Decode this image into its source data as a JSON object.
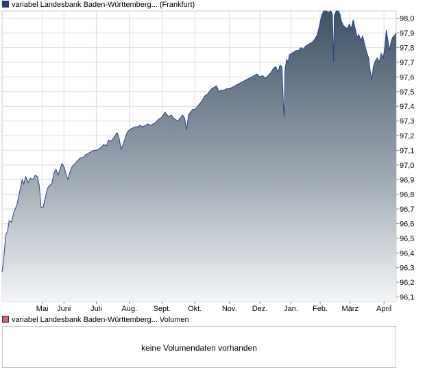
{
  "legend": {
    "price_label": "variabel Landesbank Baden-Württemberg... (Frankfurt)",
    "price_color": "#1f3f8f",
    "volume_label": "variabel Landesbank Baden-Württemberg... Volumen",
    "volume_color": "#d9606a"
  },
  "volume": {
    "message": "keine Volumendaten vorhanden"
  },
  "chart_data": {
    "type": "area",
    "grid": true,
    "y_axis_side": "right",
    "ylim": [
      96.07,
      98.05
    ],
    "yticks": [
      "96,1",
      "96,2",
      "96,3",
      "96,4",
      "96,5",
      "96,6",
      "96,7",
      "96,8",
      "96,9",
      "97,0",
      "97,1",
      "97,2",
      "97,3",
      "97,4",
      "97,5",
      "97,6",
      "97,7",
      "97,8",
      "97,9",
      "98,0"
    ],
    "ytick_values": [
      96.1,
      96.2,
      96.3,
      96.4,
      96.5,
      96.6,
      96.7,
      96.8,
      96.9,
      97.0,
      97.1,
      97.2,
      97.3,
      97.4,
      97.5,
      97.6,
      97.7,
      97.8,
      97.9,
      98.0
    ],
    "xlim": [
      0,
      1
    ],
    "xticks": [
      {
        "label": "Mai",
        "x": 0.102
      },
      {
        "label": "Juni",
        "x": 0.157
      },
      {
        "label": "Juli",
        "x": 0.239
      },
      {
        "label": "Aug.",
        "x": 0.323
      },
      {
        "label": "Sept.",
        "x": 0.406
      },
      {
        "label": "Okt.",
        "x": 0.489
      },
      {
        "label": "Nov.",
        "x": 0.577
      },
      {
        "label": "Dez.",
        "x": 0.654
      },
      {
        "label": "Jan.",
        "x": 0.733
      },
      {
        "label": "Feb.",
        "x": 0.807
      },
      {
        "label": "März",
        "x": 0.883
      },
      {
        "label": "April",
        "x": 0.969
      }
    ],
    "series": [
      {
        "values": [
          [
            0.0,
            96.27
          ],
          [
            0.004,
            96.35
          ],
          [
            0.009,
            96.52
          ],
          [
            0.014,
            96.55
          ],
          [
            0.018,
            96.62
          ],
          [
            0.024,
            96.61
          ],
          [
            0.03,
            96.68
          ],
          [
            0.038,
            96.73
          ],
          [
            0.044,
            96.81
          ],
          [
            0.048,
            96.86
          ],
          [
            0.051,
            96.9
          ],
          [
            0.055,
            96.87
          ],
          [
            0.06,
            96.92
          ],
          [
            0.066,
            96.88
          ],
          [
            0.072,
            96.91
          ],
          [
            0.078,
            96.9
          ],
          [
            0.084,
            96.93
          ],
          [
            0.09,
            96.92
          ],
          [
            0.095,
            96.85
          ],
          [
            0.099,
            96.71
          ],
          [
            0.104,
            96.71
          ],
          [
            0.11,
            96.78
          ],
          [
            0.115,
            96.84
          ],
          [
            0.121,
            96.86
          ],
          [
            0.126,
            96.87
          ],
          [
            0.132,
            96.95
          ],
          [
            0.137,
            96.97
          ],
          [
            0.142,
            96.93
          ],
          [
            0.147,
            96.97
          ],
          [
            0.152,
            97.01
          ],
          [
            0.157,
            96.99
          ],
          [
            0.162,
            96.94
          ],
          [
            0.167,
            96.9
          ],
          [
            0.172,
            96.95
          ],
          [
            0.178,
            96.99
          ],
          [
            0.185,
            97.01
          ],
          [
            0.192,
            97.03
          ],
          [
            0.199,
            97.05
          ],
          [
            0.206,
            97.05
          ],
          [
            0.212,
            97.07
          ],
          [
            0.219,
            97.08
          ],
          [
            0.226,
            97.09
          ],
          [
            0.233,
            97.1
          ],
          [
            0.24,
            97.1
          ],
          [
            0.246,
            97.11
          ],
          [
            0.252,
            97.12
          ],
          [
            0.258,
            97.14
          ],
          [
            0.265,
            97.13
          ],
          [
            0.27,
            97.17
          ],
          [
            0.276,
            97.16
          ],
          [
            0.282,
            97.18
          ],
          [
            0.287,
            97.2
          ],
          [
            0.292,
            97.22
          ],
          [
            0.297,
            97.18
          ],
          [
            0.302,
            97.11
          ],
          [
            0.307,
            97.14
          ],
          [
            0.312,
            97.18
          ],
          [
            0.317,
            97.22
          ],
          [
            0.323,
            97.24
          ],
          [
            0.33,
            97.25
          ],
          [
            0.337,
            97.26
          ],
          [
            0.344,
            97.26
          ],
          [
            0.35,
            97.27
          ],
          [
            0.357,
            97.26
          ],
          [
            0.363,
            97.27
          ],
          [
            0.37,
            97.28
          ],
          [
            0.377,
            97.27
          ],
          [
            0.383,
            97.28
          ],
          [
            0.39,
            97.29
          ],
          [
            0.396,
            97.31
          ],
          [
            0.403,
            97.32
          ],
          [
            0.409,
            97.34
          ],
          [
            0.414,
            97.36
          ],
          [
            0.419,
            97.34
          ],
          [
            0.424,
            97.33
          ],
          [
            0.429,
            97.34
          ],
          [
            0.435,
            97.32
          ],
          [
            0.44,
            97.31
          ],
          [
            0.446,
            97.3
          ],
          [
            0.452,
            97.32
          ],
          [
            0.458,
            97.34
          ],
          [
            0.463,
            97.32
          ],
          [
            0.468,
            97.24
          ],
          [
            0.473,
            97.34
          ],
          [
            0.478,
            97.36
          ],
          [
            0.484,
            97.38
          ],
          [
            0.49,
            97.38
          ],
          [
            0.496,
            97.4
          ],
          [
            0.502,
            97.42
          ],
          [
            0.508,
            97.44
          ],
          [
            0.514,
            97.47
          ],
          [
            0.52,
            97.48
          ],
          [
            0.526,
            97.5
          ],
          [
            0.532,
            97.52
          ],
          [
            0.538,
            97.53
          ],
          [
            0.544,
            97.54
          ],
          [
            0.55,
            97.5
          ],
          [
            0.556,
            97.51
          ],
          [
            0.563,
            97.51
          ],
          [
            0.57,
            97.52
          ],
          [
            0.577,
            97.52
          ],
          [
            0.584,
            97.53
          ],
          [
            0.591,
            97.54
          ],
          [
            0.598,
            97.55
          ],
          [
            0.605,
            97.56
          ],
          [
            0.612,
            97.57
          ],
          [
            0.619,
            97.58
          ],
          [
            0.626,
            97.59
          ],
          [
            0.633,
            97.6
          ],
          [
            0.64,
            97.61
          ],
          [
            0.647,
            97.62
          ],
          [
            0.654,
            97.6
          ],
          [
            0.661,
            97.61
          ],
          [
            0.668,
            97.59
          ],
          [
            0.675,
            97.61
          ],
          [
            0.682,
            97.63
          ],
          [
            0.689,
            97.66
          ],
          [
            0.695,
            97.67
          ],
          [
            0.7,
            97.63
          ],
          [
            0.705,
            97.68
          ],
          [
            0.71,
            97.67
          ],
          [
            0.714,
            97.4
          ],
          [
            0.716,
            97.33
          ],
          [
            0.718,
            97.65
          ],
          [
            0.722,
            97.72
          ],
          [
            0.726,
            97.7
          ],
          [
            0.729,
            97.75
          ],
          [
            0.734,
            97.76
          ],
          [
            0.74,
            97.77
          ],
          [
            0.746,
            97.78
          ],
          [
            0.752,
            97.78
          ],
          [
            0.758,
            97.8
          ],
          [
            0.764,
            97.79
          ],
          [
            0.77,
            97.81
          ],
          [
            0.776,
            97.82
          ],
          [
            0.782,
            97.83
          ],
          [
            0.788,
            97.84
          ],
          [
            0.794,
            97.86
          ],
          [
            0.8,
            97.89
          ],
          [
            0.806,
            97.96
          ],
          [
            0.811,
            98.02
          ],
          [
            0.816,
            98.05
          ],
          [
            0.822,
            98.05
          ],
          [
            0.828,
            98.04
          ],
          [
            0.834,
            98.05
          ],
          [
            0.838,
            98.03
          ],
          [
            0.841,
            97.7
          ],
          [
            0.843,
            98.02
          ],
          [
            0.848,
            98.05
          ],
          [
            0.853,
            98.05
          ],
          [
            0.857,
            98.03
          ],
          [
            0.861,
            97.98
          ],
          [
            0.866,
            97.95
          ],
          [
            0.871,
            97.94
          ],
          [
            0.876,
            97.93
          ],
          [
            0.881,
            97.96
          ],
          [
            0.886,
            97.93
          ],
          [
            0.891,
            97.99
          ],
          [
            0.896,
            97.93
          ],
          [
            0.901,
            97.87
          ],
          [
            0.905,
            97.89
          ],
          [
            0.91,
            97.85
          ],
          [
            0.915,
            97.88
          ],
          [
            0.92,
            97.82
          ],
          [
            0.925,
            97.77
          ],
          [
            0.93,
            97.73
          ],
          [
            0.934,
            97.64
          ],
          [
            0.938,
            97.58
          ],
          [
            0.942,
            97.67
          ],
          [
            0.947,
            97.71
          ],
          [
            0.952,
            97.73
          ],
          [
            0.957,
            97.7
          ],
          [
            0.962,
            97.76
          ],
          [
            0.967,
            97.73
          ],
          [
            0.971,
            97.8
          ],
          [
            0.975,
            97.92
          ],
          [
            0.979,
            97.85
          ],
          [
            0.983,
            97.78
          ],
          [
            0.987,
            97.84
          ],
          [
            0.991,
            97.87
          ],
          [
            0.995,
            97.88
          ],
          [
            1.0,
            97.9
          ]
        ]
      }
    ]
  }
}
